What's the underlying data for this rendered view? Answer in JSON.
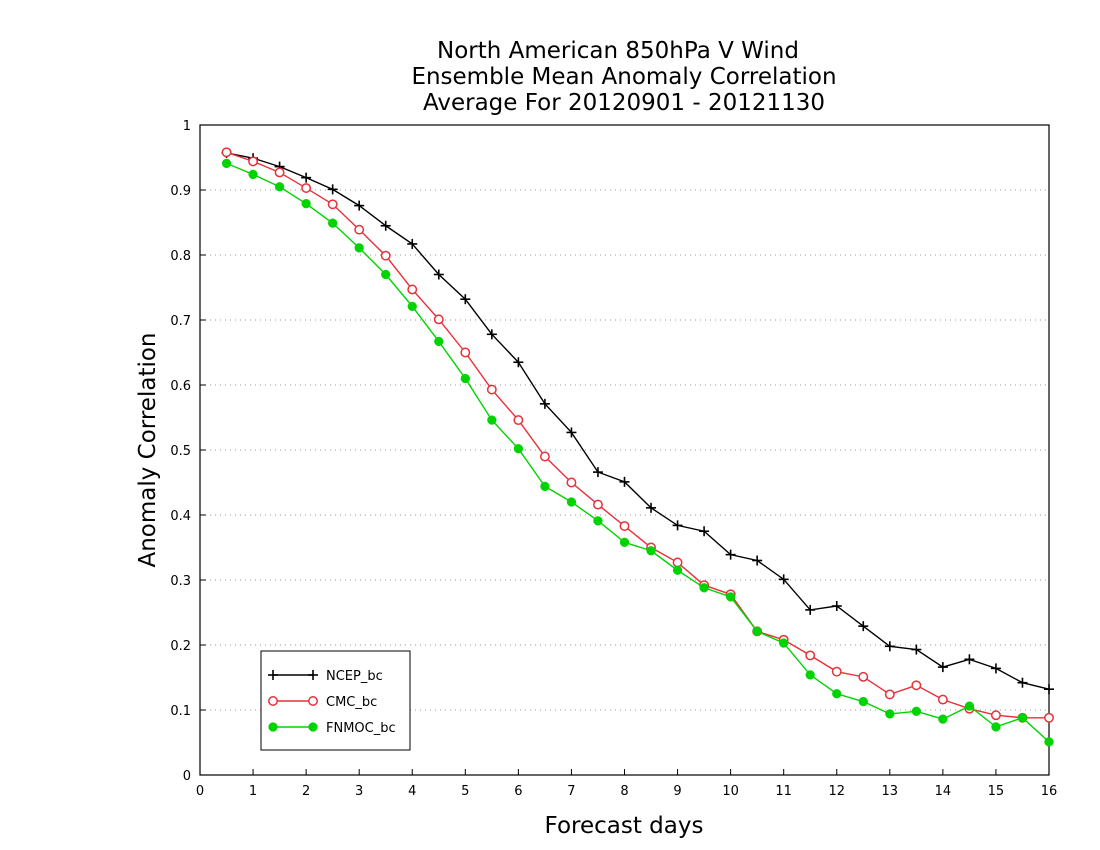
{
  "chart_data": {
    "type": "line",
    "title": [
      "North American 850hPa V Wind",
      "Ensemble Mean Anomaly Correlation",
      "Average For 20120901 - 20121130"
    ],
    "xlabel": "Forecast days",
    "ylabel": "Anomaly Correlation",
    "xlim": [
      0,
      16
    ],
    "ylim": [
      0,
      1
    ],
    "x_ticks": [
      0,
      1,
      2,
      3,
      4,
      5,
      6,
      7,
      8,
      9,
      10,
      11,
      12,
      13,
      14,
      15,
      16
    ],
    "y_ticks": [
      0,
      0.1,
      0.2,
      0.3,
      0.4,
      0.5,
      0.6,
      0.7,
      0.8,
      0.9,
      1
    ],
    "y_tick_labels": [
      "0",
      "0.1",
      "0.2",
      "0.3",
      "0.4",
      "0.5",
      "0.6",
      "0.7",
      "0.8",
      "0.9",
      "1"
    ],
    "grid": "horizontal dotted",
    "legend_position": "bottom-left",
    "x": [
      0.5,
      1,
      1.5,
      2,
      2.5,
      3,
      3.5,
      4,
      4.5,
      5,
      5.5,
      6,
      6.5,
      7,
      7.5,
      8,
      8.5,
      9,
      9.5,
      10,
      10.5,
      11,
      11.5,
      12,
      12.5,
      13,
      13.5,
      14,
      14.5,
      15,
      15.5,
      16
    ],
    "series": [
      {
        "name": "NCEP_bc",
        "color": "#000000",
        "marker": "plus",
        "values": [
          0.957,
          0.949,
          0.936,
          0.919,
          0.901,
          0.876,
          0.845,
          0.817,
          0.77,
          0.732,
          0.678,
          0.635,
          0.571,
          0.527,
          0.466,
          0.451,
          0.411,
          0.384,
          0.375,
          0.339,
          0.33,
          0.301,
          0.254,
          0.26,
          0.229,
          0.198,
          0.193,
          0.166,
          0.178,
          0.164,
          0.142,
          0.132
        ]
      },
      {
        "name": "CMC_bc",
        "color": "#e8303a",
        "marker": "open-circle",
        "values": [
          0.958,
          0.944,
          0.927,
          0.903,
          0.878,
          0.839,
          0.799,
          0.747,
          0.701,
          0.65,
          0.593,
          0.546,
          0.49,
          0.45,
          0.416,
          0.383,
          0.35,
          0.327,
          0.292,
          0.278,
          0.221,
          0.208,
          0.184,
          0.159,
          0.151,
          0.124,
          0.138,
          0.116,
          0.102,
          0.092,
          0.088,
          0.088
        ]
      },
      {
        "name": "FNMOC_bc",
        "color": "#00d400",
        "marker": "filled-circle",
        "values": [
          0.941,
          0.924,
          0.905,
          0.879,
          0.849,
          0.811,
          0.77,
          0.721,
          0.667,
          0.61,
          0.546,
          0.502,
          0.444,
          0.42,
          0.391,
          0.358,
          0.345,
          0.315,
          0.288,
          0.274,
          0.221,
          0.203,
          0.154,
          0.125,
          0.113,
          0.094,
          0.098,
          0.086,
          0.106,
          0.074,
          0.088,
          0.051
        ]
      }
    ]
  }
}
